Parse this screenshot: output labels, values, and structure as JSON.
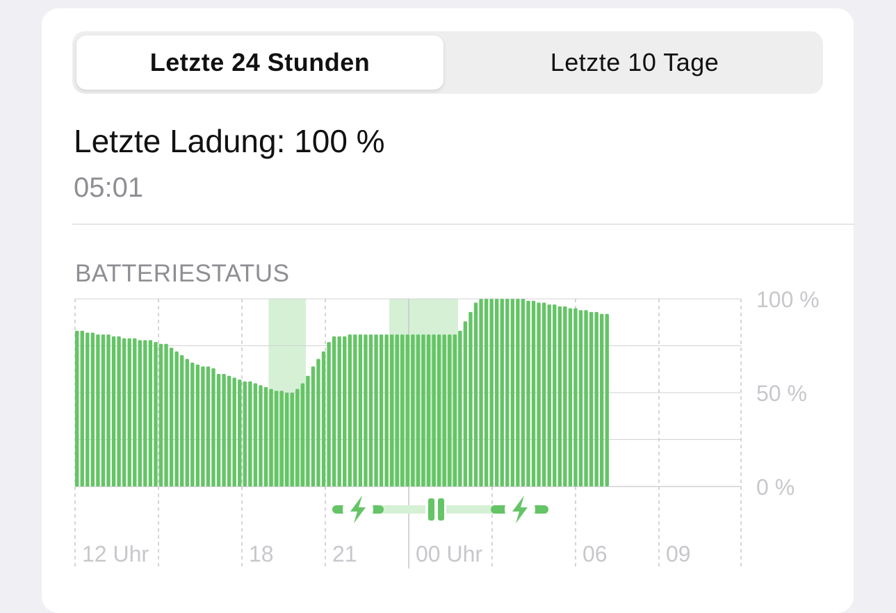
{
  "tabs": [
    {
      "label": "Letzte 24 Stunden",
      "active": true
    },
    {
      "label": "Letzte 10 Tage",
      "active": false
    }
  ],
  "last_charge": {
    "label": "Letzte Ladung: 100 %",
    "time": "05:01"
  },
  "section_title": "BATTERIESTATUS",
  "colors": {
    "bar": "#65c466",
    "charging_band": "#d6f0d6",
    "grid": "#d1d1d6"
  },
  "chart_data": {
    "type": "bar",
    "y_ticks": [
      "100 %",
      "50 %",
      "0 %"
    ],
    "x_ticks": [
      "12 Uhr",
      "18",
      "21",
      "00 Uhr",
      "06",
      "09"
    ],
    "ylim": [
      0,
      100
    ],
    "values": [
      83,
      83,
      82,
      82,
      81,
      81,
      81,
      80,
      80,
      79,
      79,
      79,
      78,
      78,
      78,
      77,
      76,
      76,
      74,
      72,
      70,
      68,
      66,
      65,
      64,
      64,
      63,
      60,
      60,
      59,
      58,
      57,
      56,
      56,
      55,
      54,
      53,
      52,
      51,
      51,
      50,
      50,
      52,
      55,
      59,
      64,
      68,
      72,
      77,
      80,
      80,
      80,
      81,
      81,
      81,
      81,
      81,
      81,
      81,
      81,
      81,
      81,
      81,
      81,
      81,
      81,
      81,
      81,
      81,
      81,
      81,
      81,
      81,
      83,
      88,
      93,
      98,
      100,
      100,
      100,
      100,
      100,
      100,
      100,
      100,
      100,
      99,
      99,
      98,
      98,
      97,
      97,
      96,
      96,
      95,
      95,
      94,
      94,
      93,
      93,
      92,
      92
    ],
    "charging_periods": [
      {
        "from_index": 37,
        "to_index": 43
      },
      {
        "from_index": 60,
        "to_index": 72
      }
    ],
    "charging_indicators": [
      "bolt-icon",
      "pause-icon",
      "bolt-icon"
    ]
  }
}
